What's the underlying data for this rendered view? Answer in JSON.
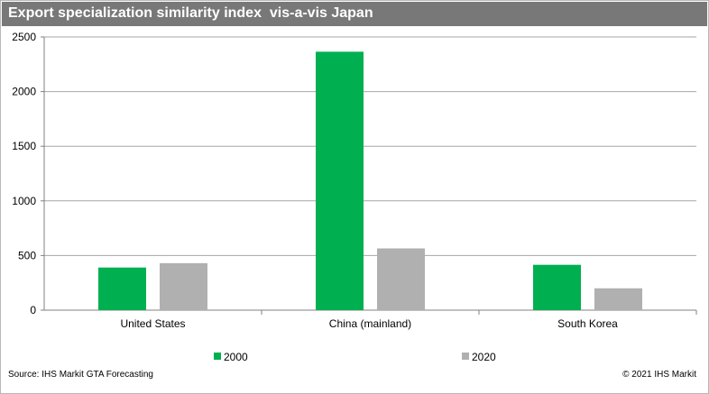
{
  "title": "Export specialization similarity index  vis-a-vis Japan",
  "source": "Source: IHS Markit GTA Forecasting",
  "copyright": "© 2021 IHS Markit",
  "colors": {
    "series_2000": "#00b050",
    "series_2020": "#b0b0b0",
    "title_bar": "#787878",
    "grid": "#a6a6a6"
  },
  "chart_data": {
    "type": "bar",
    "categories": [
      "United States",
      "China (mainland)",
      "South Korea"
    ],
    "series": [
      {
        "name": "2000",
        "values": [
          390,
          2365,
          415
        ]
      },
      {
        "name": "2020",
        "values": [
          430,
          565,
          200
        ]
      }
    ],
    "ylim": [
      0,
      2500
    ],
    "yticks": [
      "0",
      "500",
      "1000",
      "1500",
      "2000",
      "2500"
    ],
    "grid": true,
    "legend": "bottom"
  }
}
